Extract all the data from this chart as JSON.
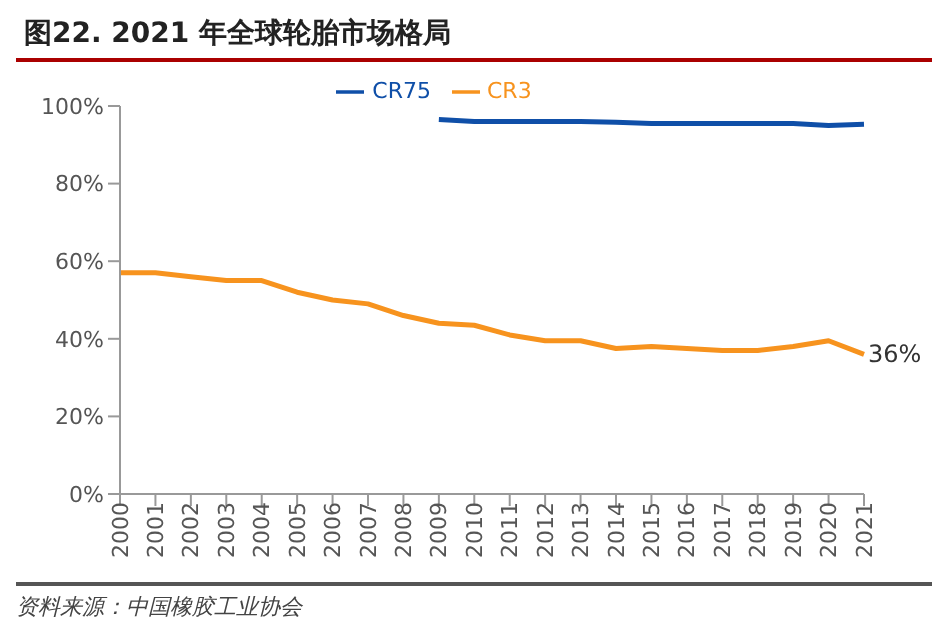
{
  "chart_data": {
    "type": "line",
    "title": "图22. 2021 年全球轮胎市场格局",
    "annotations": [
      "资料来源：中国橡胶工业协会"
    ],
    "categories": [
      "2000",
      "2001",
      "2002",
      "2003",
      "2004",
      "2005",
      "2006",
      "2007",
      "2008",
      "2009",
      "2010",
      "2011",
      "2012",
      "2013",
      "2014",
      "2015",
      "2016",
      "2017",
      "2018",
      "2019",
      "2020",
      "2021"
    ],
    "series": [
      {
        "name": "CR75",
        "color": "#0f4fa8",
        "values": [
          null,
          null,
          null,
          null,
          null,
          null,
          null,
          null,
          null,
          96.5,
          96,
          96,
          96,
          96,
          95.8,
          95.5,
          95.5,
          95.5,
          95.5,
          95.5,
          95,
          95.3
        ]
      },
      {
        "name": "CR3",
        "color": "#f7931e",
        "values": [
          57,
          57,
          56,
          55,
          55,
          52,
          50,
          49,
          46,
          44,
          43.5,
          41,
          39.5,
          39.5,
          37.5,
          38,
          37.5,
          37,
          37,
          38,
          39.5,
          36
        ],
        "value_labels": [
          null,
          null,
          null,
          null,
          null,
          null,
          null,
          null,
          null,
          null,
          null,
          null,
          null,
          null,
          null,
          null,
          null,
          null,
          null,
          null,
          null,
          "36%"
        ]
      }
    ],
    "ylim": [
      0,
      100
    ],
    "yticks": [
      {
        "value": 0,
        "label": "0%"
      },
      {
        "value": 20,
        "label": "20%"
      },
      {
        "value": 40,
        "label": "40%"
      },
      {
        "value": 60,
        "label": "60%"
      },
      {
        "value": 80,
        "label": "80%"
      },
      {
        "value": 100,
        "label": "100%"
      }
    ],
    "grid": false,
    "legend": "top",
    "marker": "none",
    "line_style": "solid"
  }
}
